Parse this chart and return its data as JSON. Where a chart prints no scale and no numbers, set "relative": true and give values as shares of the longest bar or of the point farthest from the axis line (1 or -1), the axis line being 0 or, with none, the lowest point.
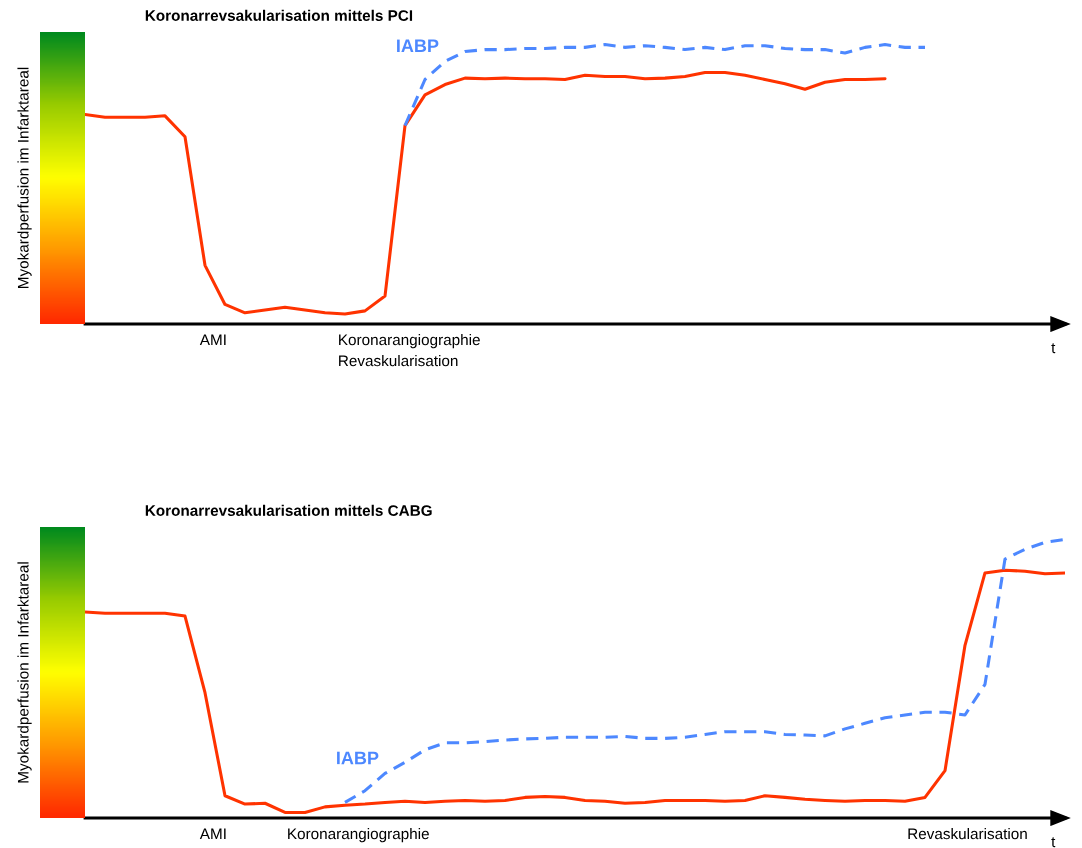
{
  "chart_data": [
    {
      "type": "line",
      "title": "Koronarrevsakularisation mittels PCI",
      "ylabel": "Myokardperfusion im Infarktareal",
      "xlabel": "t",
      "relative": true,
      "categories": [
        null,
        null,
        null,
        null,
        null,
        null,
        null,
        null,
        null,
        null,
        null,
        null,
        null,
        null,
        null,
        null,
        null,
        null,
        null,
        null,
        null,
        null,
        null,
        null,
        null,
        null,
        null,
        null,
        null,
        null,
        null,
        null,
        null,
        null,
        null,
        null,
        null,
        null,
        null,
        null,
        null,
        null,
        null,
        null,
        null,
        null,
        null,
        null,
        null,
        null
      ],
      "annotations": [
        "AMI",
        "Koronarangiographie",
        "Revaskularisation"
      ],
      "series": [
        {
          "color": "#ff3300",
          "line_style": "solid",
          "values": [
            0.75,
            0.74,
            0.74,
            0.74,
            0.745,
            0.67,
            0.21,
            0.07,
            0.04,
            0.05,
            0.06,
            0.05,
            0.04,
            0.036,
            0.047,
            0.1,
            0.71,
            0.82,
            0.857,
            0.88,
            0.878,
            0.88,
            0.878,
            0.878,
            0.875,
            0.89,
            0.886,
            0.886,
            0.878,
            0.88,
            0.886,
            0.9,
            0.9,
            0.89,
            0.875,
            0.86,
            0.84,
            0.865,
            0.875,
            0.875,
            0.878,
            null,
            null,
            null,
            null,
            null,
            null,
            null,
            null,
            null
          ]
        },
        {
          "name": "IABP",
          "color": "#4d88ff",
          "line_style": "dashed",
          "values": [
            null,
            null,
            null,
            null,
            null,
            null,
            null,
            null,
            null,
            null,
            null,
            null,
            null,
            null,
            null,
            null,
            0.71,
            0.875,
            0.94,
            0.975,
            0.982,
            0.982,
            0.986,
            0.986,
            0.99,
            0.99,
            1.0,
            0.99,
            0.996,
            0.99,
            0.982,
            0.99,
            0.982,
            0.996,
            0.996,
            0.986,
            0.982,
            0.982,
            0.97,
            0.99,
            1.0,
            0.99,
            0.99,
            null,
            null,
            null,
            null,
            null,
            null,
            null
          ]
        }
      ]
    },
    {
      "type": "line",
      "title": "Koronarrevsakularisation mittels CABG",
      "ylabel": "Myokardperfusion im Infarktareal",
      "xlabel": "t",
      "relative": true,
      "categories": [
        null,
        null,
        null,
        null,
        null,
        null,
        null,
        null,
        null,
        null,
        null,
        null,
        null,
        null,
        null,
        null,
        null,
        null,
        null,
        null,
        null,
        null,
        null,
        null,
        null,
        null,
        null,
        null,
        null,
        null,
        null,
        null,
        null,
        null,
        null,
        null,
        null,
        null,
        null,
        null,
        null,
        null,
        null,
        null,
        null,
        null,
        null,
        null,
        null,
        null
      ],
      "annotations": [
        "AMI",
        "Koronarangiographie",
        "Revaskularisation"
      ],
      "series": [
        {
          "color": "#ff3300",
          "line_style": "solid",
          "values": [
            0.74,
            0.735,
            0.735,
            0.735,
            0.735,
            0.725,
            0.45,
            0.08,
            0.05,
            0.053,
            0.02,
            0.02,
            0.04,
            0.046,
            0.05,
            0.056,
            0.06,
            0.056,
            0.06,
            0.063,
            0.06,
            0.063,
            0.074,
            0.077,
            0.074,
            0.063,
            0.06,
            0.053,
            0.056,
            0.063,
            0.063,
            0.063,
            0.06,
            0.063,
            0.08,
            0.074,
            0.067,
            0.063,
            0.06,
            0.063,
            0.063,
            0.06,
            0.074,
            0.17,
            0.62,
            0.88,
            0.89,
            0.886,
            0.877,
            0.88
          ]
        },
        {
          "name": "IABP",
          "color": "#4d88ff",
          "line_style": "dashed",
          "values": [
            null,
            null,
            null,
            null,
            null,
            null,
            null,
            null,
            null,
            null,
            null,
            null,
            null,
            0.056,
            0.098,
            0.16,
            0.2,
            0.245,
            0.27,
            0.27,
            0.274,
            0.28,
            0.284,
            0.286,
            0.29,
            0.29,
            0.29,
            0.293,
            0.286,
            0.286,
            0.29,
            0.3,
            0.31,
            0.31,
            0.31,
            0.3,
            0.298,
            0.295,
            0.32,
            0.34,
            0.36,
            0.37,
            0.38,
            0.38,
            0.37,
            0.48,
            0.93,
            0.965,
            0.99,
            1.0
          ]
        }
      ]
    }
  ]
}
